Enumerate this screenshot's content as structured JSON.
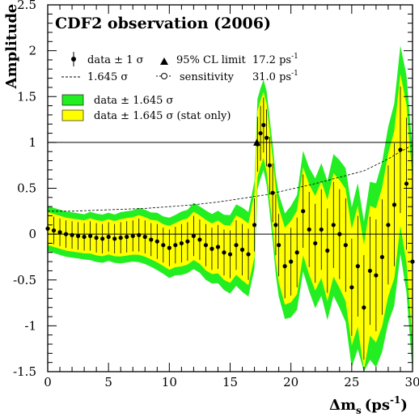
{
  "chart_data": {
    "type": "line",
    "title": "CDF2 observation (2006)",
    "xlabel": "Δm",
    "xlabel_sub": "s",
    "xlabel_unit": "(ps",
    "xlabel_sup": "-1",
    "xlabel_close": ")",
    "ylabel": "Amplitude",
    "xlim": [
      0,
      30
    ],
    "ylim": [
      -1.5,
      2.5
    ],
    "x_ticks": [
      0,
      5,
      10,
      15,
      20,
      25,
      30
    ],
    "x_tick_labels": [
      "0",
      "5",
      "10",
      "15",
      "20",
      "25",
      "30"
    ],
    "y_ticks": [
      -1.5,
      -1,
      -0.5,
      0,
      0.5,
      1,
      1.5,
      2,
      2.5
    ],
    "y_tick_labels": [
      "-1.5",
      "-1",
      "-0.5",
      "0",
      "0.5",
      "1",
      "1.5",
      "2",
      "2.5"
    ],
    "reference_lines": [
      0,
      1
    ],
    "legend": {
      "data": "data ± 1 σ",
      "limit_label": "95% CL limit",
      "limit_value": "17.2 ps",
      "limit_sup": "-1",
      "dashed": "1.645 σ",
      "sensitivity_label": "sensitivity",
      "sensitivity_value": "31.0 ps",
      "sensitivity_sup": "-1",
      "band_green": "data ± 1.645 σ",
      "band_yellow": "data ± 1.645 σ (stat only)"
    },
    "colors": {
      "green_band": "#22ee22",
      "yellow_band": "#ffff00",
      "points": "#000000"
    },
    "cl_limit_x": 17.2,
    "cl_limit_y": 1.0,
    "series": [
      {
        "name": "data ± 1 σ",
        "x": [
          0.0,
          0.5,
          1.0,
          1.5,
          2.0,
          2.5,
          3.0,
          3.5,
          4.0,
          4.5,
          5.0,
          5.5,
          6.0,
          6.5,
          7.0,
          7.5,
          8.0,
          8.5,
          9.0,
          9.5,
          10.0,
          10.5,
          11.0,
          11.5,
          12.0,
          12.5,
          13.0,
          13.5,
          14.0,
          14.5,
          15.0,
          15.5,
          16.0,
          16.5,
          17.0,
          17.25,
          17.5,
          17.75,
          18.0,
          18.25,
          18.5,
          18.75,
          19.0,
          19.5,
          20.0,
          20.5,
          21.0,
          21.5,
          22.0,
          22.5,
          23.0,
          23.5,
          24.0,
          24.5,
          25.0,
          25.5,
          26.0,
          26.5,
          27.0,
          27.5,
          28.0,
          28.5,
          29.0,
          29.5,
          30.0
        ],
        "y": [
          0.06,
          0.04,
          0.02,
          0.0,
          -0.01,
          -0.02,
          -0.03,
          -0.02,
          -0.04,
          -0.05,
          -0.03,
          -0.05,
          -0.04,
          -0.03,
          -0.02,
          -0.01,
          -0.03,
          -0.06,
          -0.08,
          -0.12,
          -0.15,
          -0.12,
          -0.1,
          -0.08,
          -0.02,
          -0.06,
          -0.12,
          -0.16,
          -0.14,
          -0.2,
          -0.22,
          -0.12,
          -0.17,
          -0.22,
          0.1,
          0.98,
          1.1,
          1.19,
          1.05,
          0.75,
          0.45,
          0.1,
          -0.12,
          -0.35,
          -0.3,
          -0.2,
          0.25,
          0.05,
          -0.1,
          0.05,
          -0.18,
          0.1,
          0.0,
          -0.12,
          -0.58,
          -0.35,
          -0.8,
          -0.4,
          -0.45,
          -0.25,
          0.1,
          0.32,
          0.92,
          0.55,
          -0.3
        ],
        "sigma": [
          0.15,
          0.15,
          0.15,
          0.15,
          0.15,
          0.15,
          0.15,
          0.16,
          0.16,
          0.16,
          0.16,
          0.16,
          0.17,
          0.17,
          0.17,
          0.18,
          0.18,
          0.18,
          0.19,
          0.19,
          0.2,
          0.2,
          0.21,
          0.21,
          0.22,
          0.22,
          0.23,
          0.23,
          0.24,
          0.25,
          0.26,
          0.27,
          0.28,
          0.28,
          0.29,
          0.3,
          0.3,
          0.3,
          0.31,
          0.31,
          0.32,
          0.33,
          0.34,
          0.35,
          0.37,
          0.38,
          0.4,
          0.41,
          0.43,
          0.44,
          0.46,
          0.47,
          0.49,
          0.51,
          0.53,
          0.55,
          0.57,
          0.59,
          0.61,
          0.63,
          0.65,
          0.67,
          0.69,
          0.72,
          0.74
        ]
      },
      {
        "name": "1.645 σ",
        "x": [
          0,
          2,
          4,
          6,
          8,
          10,
          12,
          14,
          16,
          18,
          20,
          22,
          24,
          26,
          28,
          29,
          30
        ],
        "y": [
          0.25,
          0.25,
          0.26,
          0.27,
          0.28,
          0.3,
          0.32,
          0.35,
          0.39,
          0.43,
          0.49,
          0.55,
          0.62,
          0.69,
          0.82,
          0.9,
          0.97
        ]
      }
    ]
  }
}
